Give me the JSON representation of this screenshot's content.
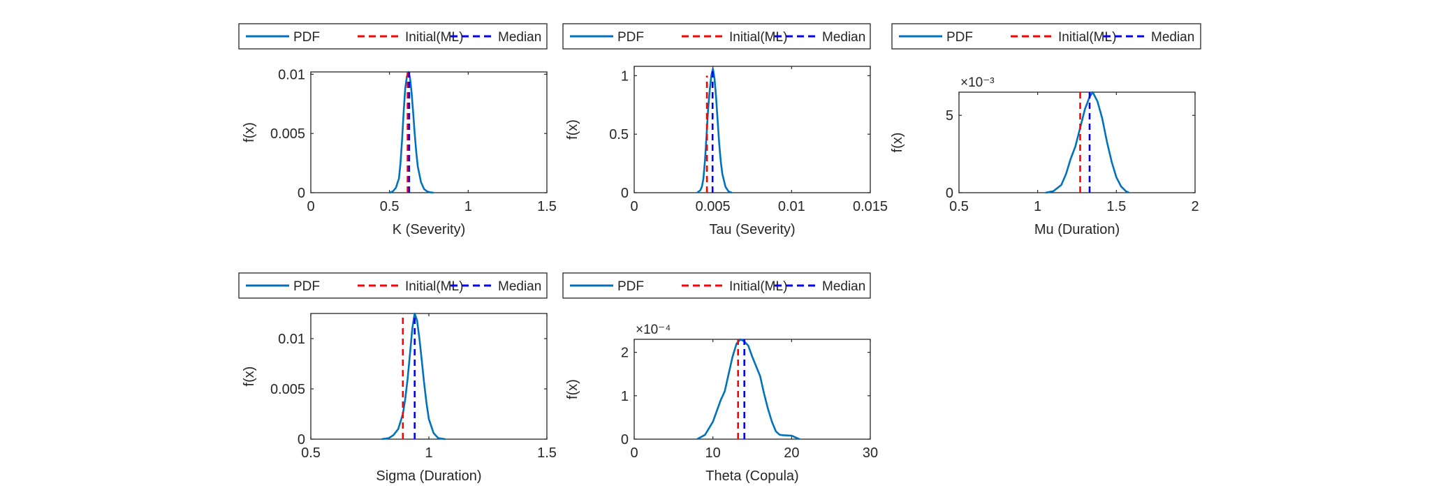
{
  "legend_labels": [
    "PDF",
    "Initial(ML)",
    "Median"
  ],
  "colors": {
    "pdf": "#0072BD",
    "initial": "#FF0000",
    "median": "#0000FF",
    "axis": "#262626"
  },
  "chart_data": [
    {
      "type": "line",
      "xlabel": "K (Severity)",
      "ylabel": "f(x)",
      "xlim": [
        0,
        1.5
      ],
      "ylim": [
        0,
        0.0102
      ],
      "xticks": [
        "0",
        "0.5",
        "1",
        "1.5"
      ],
      "yticks": [
        "0",
        "0.005",
        "0.01"
      ],
      "y_exponent": "",
      "series": [
        {
          "name": "PDF",
          "style": "solid",
          "x": [
            0.5,
            0.52,
            0.54,
            0.56,
            0.57,
            0.58,
            0.59,
            0.6,
            0.61,
            0.62,
            0.63,
            0.64,
            0.65,
            0.66,
            0.67,
            0.68,
            0.7,
            0.72,
            0.74,
            0.76,
            0.78
          ],
          "y": [
            0,
            0.0001,
            0.0004,
            0.0012,
            0.0025,
            0.0045,
            0.0068,
            0.0088,
            0.0098,
            0.0102,
            0.0097,
            0.0085,
            0.0068,
            0.005,
            0.0034,
            0.0022,
            0.0009,
            0.0003,
            0.0001,
            3e-05,
            0
          ]
        },
        {
          "name": "Initial(ML)",
          "style": "dashed",
          "x": [
            0.615,
            0.615
          ],
          "y": [
            0,
            0.0102
          ]
        },
        {
          "name": "Median",
          "style": "dashed",
          "x": [
            0.625,
            0.625
          ],
          "y": [
            0,
            0.0102
          ]
        }
      ]
    },
    {
      "type": "line",
      "xlabel": "Tau (Severity)",
      "ylabel": "f(x)",
      "xlim": [
        0,
        0.015
      ],
      "ylim": [
        0,
        1.08
      ],
      "xticks": [
        "0",
        "0.005",
        "0.01",
        "0.015"
      ],
      "yticks": [
        "0",
        "0.5",
        "1"
      ],
      "y_exponent": "",
      "series": [
        {
          "name": "PDF",
          "style": "solid",
          "x": [
            0.004,
            0.0042,
            0.0043,
            0.0044,
            0.0045,
            0.0046,
            0.0047,
            0.0048,
            0.0049,
            0.005,
            0.0051,
            0.0052,
            0.0053,
            0.0054,
            0.0055,
            0.0056,
            0.0058,
            0.006,
            0.0062
          ],
          "y": [
            0,
            0.02,
            0.05,
            0.12,
            0.28,
            0.5,
            0.72,
            0.88,
            1.0,
            1.06,
            0.98,
            0.82,
            0.62,
            0.42,
            0.27,
            0.16,
            0.05,
            0.01,
            0
          ]
        },
        {
          "name": "Initial(ML)",
          "style": "dashed",
          "x": [
            0.00462,
            0.00462
          ],
          "y": [
            0,
            1.0
          ]
        },
        {
          "name": "Median",
          "style": "dashed",
          "x": [
            0.00498,
            0.00498
          ],
          "y": [
            0,
            1.06
          ]
        }
      ]
    },
    {
      "type": "line",
      "xlabel": "Mu (Duration)",
      "ylabel": "f(x)",
      "xlim": [
        0.5,
        2
      ],
      "ylim": [
        0,
        6.5
      ],
      "xticks": [
        "0.5",
        "1",
        "1.5",
        "2"
      ],
      "yticks": [
        "0",
        "5"
      ],
      "y_exponent": "×10⁻³",
      "series": [
        {
          "name": "PDF",
          "style": "solid",
          "x": [
            1.05,
            1.1,
            1.15,
            1.18,
            1.21,
            1.24,
            1.27,
            1.3,
            1.33,
            1.35,
            1.38,
            1.41,
            1.44,
            1.47,
            1.5,
            1.53,
            1.56,
            1.58
          ],
          "y": [
            0,
            0.1,
            0.5,
            1.2,
            2.2,
            3.0,
            4.2,
            5.4,
            6.2,
            6.5,
            5.9,
            4.8,
            3.3,
            2.0,
            1.0,
            0.4,
            0.1,
            0
          ]
        },
        {
          "name": "Initial(ML)",
          "style": "dashed",
          "x": [
            1.27,
            1.27
          ],
          "y": [
            0,
            6.5
          ]
        },
        {
          "name": "Median",
          "style": "dashed",
          "x": [
            1.33,
            1.33
          ],
          "y": [
            0,
            6.5
          ]
        }
      ]
    },
    {
      "type": "line",
      "xlabel": "Sigma (Duration)",
      "ylabel": "f(x)",
      "xlim": [
        0.5,
        1.5
      ],
      "ylim": [
        0,
        0.0125
      ],
      "xticks": [
        "0.5",
        "1",
        "1.5"
      ],
      "yticks": [
        "0",
        "0.005",
        "0.01"
      ],
      "y_exponent": "",
      "series": [
        {
          "name": "PDF",
          "style": "solid",
          "x": [
            0.8,
            0.83,
            0.85,
            0.87,
            0.89,
            0.9,
            0.91,
            0.92,
            0.93,
            0.94,
            0.95,
            0.96,
            0.97,
            0.98,
            0.99,
            1.0,
            1.02,
            1.04,
            1.07
          ],
          "y": [
            0,
            0.0001,
            0.0004,
            0.001,
            0.0025,
            0.004,
            0.006,
            0.0085,
            0.011,
            0.0125,
            0.0118,
            0.01,
            0.0078,
            0.0056,
            0.0036,
            0.002,
            0.0006,
            0.0001,
            0
          ]
        },
        {
          "name": "Initial(ML)",
          "style": "dashed",
          "x": [
            0.89,
            0.89
          ],
          "y": [
            0,
            0.0122
          ]
        },
        {
          "name": "Median",
          "style": "dashed",
          "x": [
            0.94,
            0.94
          ],
          "y": [
            0,
            0.0125
          ]
        }
      ]
    },
    {
      "type": "line",
      "xlabel": "Theta (Copula)",
      "ylabel": "f(x)",
      "xlim": [
        0,
        30
      ],
      "ylim": [
        0,
        2.3
      ],
      "xticks": [
        "0",
        "10",
        "20",
        "30"
      ],
      "yticks": [
        "0",
        "1",
        "2"
      ],
      "y_exponent": "×10⁻⁴",
      "series": [
        {
          "name": "PDF",
          "style": "solid",
          "x": [
            8,
            9,
            10,
            11,
            11.5,
            12,
            12.5,
            13,
            13.5,
            14,
            14.5,
            15,
            16,
            16.5,
            17,
            17.5,
            18,
            18.5,
            19,
            20,
            21
          ],
          "y": [
            0,
            0.1,
            0.4,
            0.9,
            1.1,
            1.5,
            1.9,
            2.2,
            2.3,
            2.25,
            2.15,
            1.9,
            1.45,
            1.05,
            0.7,
            0.4,
            0.18,
            0.1,
            0.09,
            0.08,
            0
          ]
        },
        {
          "name": "Initial(ML)",
          "style": "dashed",
          "x": [
            13.2,
            13.2
          ],
          "y": [
            0,
            2.3
          ]
        },
        {
          "name": "Median",
          "style": "dashed",
          "x": [
            14.0,
            14.0
          ],
          "y": [
            0,
            2.3
          ]
        }
      ]
    }
  ]
}
